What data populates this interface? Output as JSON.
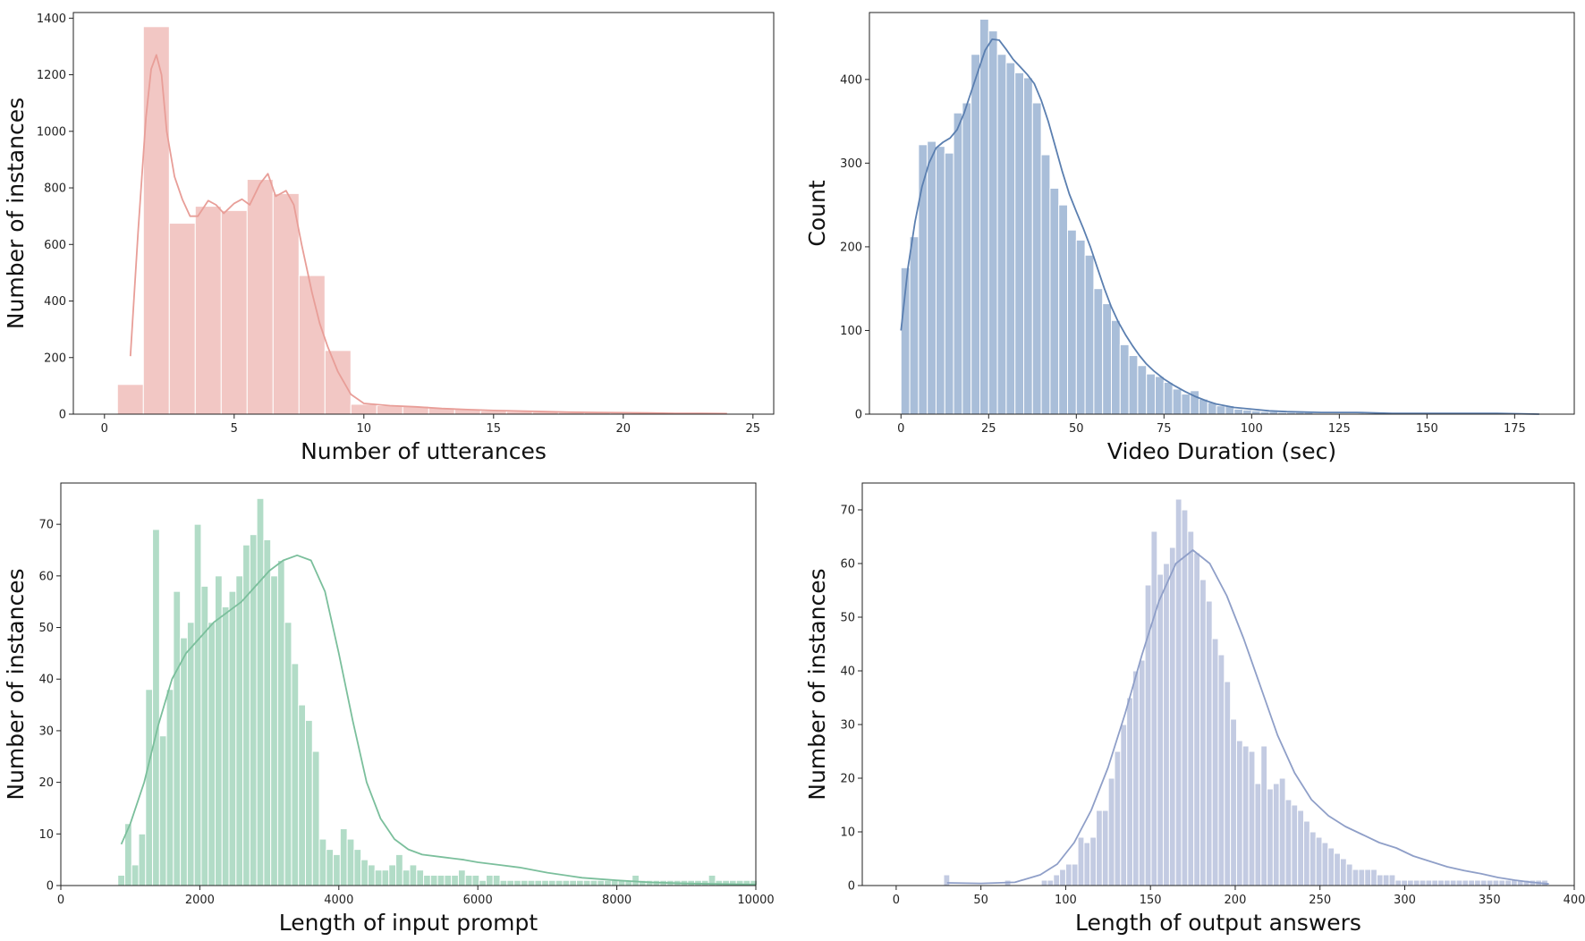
{
  "chart_data": [
    {
      "type": "bar",
      "subtype": "histogram",
      "title": "",
      "xlabel": "Number of utterances",
      "ylabel": "Number of instances",
      "xlim": [
        -1.2,
        25.8
      ],
      "ylim": [
        0,
        1420
      ],
      "xticks": [
        0,
        5,
        10,
        15,
        20,
        25
      ],
      "yticks": [
        0,
        200,
        400,
        600,
        800,
        1000,
        1200,
        1400
      ],
      "bar_color": "#f2c7c4",
      "kde_color": "#e89e98",
      "grid": false,
      "bins": {
        "start": 0.5,
        "width": 1,
        "counts": [
          105,
          1370,
          675,
          735,
          720,
          830,
          780,
          490,
          225,
          35,
          30,
          28,
          22,
          18,
          12,
          10,
          8,
          6,
          5,
          4,
          3,
          3,
          2,
          2
        ]
      },
      "kde": {
        "x": [
          1.0,
          1.3,
          1.6,
          1.8,
          2.0,
          2.2,
          2.4,
          2.7,
          3.0,
          3.3,
          3.6,
          4.0,
          4.3,
          4.6,
          5.0,
          5.3,
          5.6,
          6.0,
          6.3,
          6.6,
          7.0,
          7.3,
          7.6,
          8.0,
          8.3,
          8.6,
          9.0,
          9.5,
          10.0,
          11.0,
          12.0,
          13.0,
          14.0,
          15.0,
          16.0,
          17.0,
          18.0,
          19.0,
          20.0,
          21.0,
          22.0,
          23.0,
          24.0
        ],
        "y": [
          205,
          650,
          1050,
          1220,
          1270,
          1200,
          1000,
          840,
          760,
          700,
          700,
          755,
          740,
          710,
          745,
          760,
          740,
          815,
          850,
          770,
          790,
          740,
          600,
          430,
          320,
          240,
          150,
          70,
          38,
          30,
          26,
          20,
          16,
          13,
          11,
          9,
          7,
          6,
          5,
          4,
          3,
          3,
          2
        ]
      }
    },
    {
      "type": "bar",
      "subtype": "histogram",
      "title": "",
      "xlabel": "Video Duration (sec)",
      "ylabel": "Count",
      "xlim": [
        -9,
        192
      ],
      "ylim": [
        0,
        480
      ],
      "xticks": [
        0,
        25,
        50,
        75,
        100,
        125,
        150,
        175
      ],
      "yticks": [
        0,
        100,
        200,
        300,
        400
      ],
      "bar_color": "#a9bed9",
      "kde_color": "#5b7fb0",
      "grid": false,
      "bins": {
        "start": 0,
        "width": 2.5,
        "counts": [
          175,
          212,
          322,
          326,
          320,
          312,
          360,
          372,
          430,
          472,
          458,
          430,
          420,
          408,
          402,
          372,
          310,
          270,
          250,
          220,
          208,
          190,
          150,
          132,
          112,
          83,
          70,
          58,
          48,
          45,
          38,
          30,
          24,
          28,
          18,
          14,
          10,
          10,
          6,
          5,
          4,
          3,
          3,
          2,
          2,
          2,
          2,
          1,
          1,
          1,
          1,
          1,
          1,
          1,
          1,
          1,
          1,
          1,
          1,
          1,
          1,
          1,
          1,
          1,
          1,
          1,
          1,
          1,
          1,
          1,
          1,
          1,
          1
        ]
      },
      "kde": {
        "x": [
          0,
          2,
          4,
          6,
          8,
          10,
          12,
          14,
          16,
          18,
          20,
          22,
          24,
          26,
          28,
          30,
          32,
          34,
          36,
          38,
          40,
          42,
          44,
          46,
          48,
          50,
          52,
          54,
          56,
          58,
          60,
          62,
          64,
          66,
          68,
          70,
          72,
          75,
          78,
          81,
          84,
          87,
          90,
          95,
          100,
          105,
          110,
          120,
          130,
          140,
          150,
          160,
          170,
          182
        ],
        "y": [
          100,
          175,
          230,
          272,
          300,
          318,
          325,
          330,
          340,
          360,
          385,
          410,
          435,
          448,
          447,
          436,
          424,
          415,
          406,
          395,
          375,
          350,
          320,
          290,
          263,
          242,
          222,
          200,
          175,
          150,
          128,
          110,
          95,
          82,
          70,
          60,
          52,
          42,
          34,
          27,
          21,
          16,
          12,
          8,
          6,
          4,
          3,
          2,
          2,
          1,
          1,
          1,
          1,
          0
        ]
      }
    },
    {
      "type": "bar",
      "subtype": "histogram",
      "title": "",
      "xlabel": "Length of input prompt",
      "ylabel": "Number of instances",
      "xlim": [
        0,
        10000
      ],
      "ylim": [
        0,
        78
      ],
      "xticks": [
        0,
        2000,
        4000,
        6000,
        8000,
        10000
      ],
      "yticks": [
        0,
        10,
        20,
        30,
        40,
        50,
        60,
        70
      ],
      "bar_color": "#b2dcc7",
      "kde_color": "#7bbf9c",
      "grid": false,
      "bins": {
        "start": 820,
        "width": 100,
        "counts": [
          2,
          12,
          4,
          10,
          38,
          69,
          29,
          38,
          57,
          48,
          51,
          70,
          58,
          51,
          60,
          54,
          57,
          60,
          66,
          68,
          75,
          67,
          60,
          63,
          51,
          43,
          35,
          32,
          26,
          9,
          7,
          6,
          11,
          9,
          7,
          5,
          4,
          3,
          3,
          4,
          6,
          3,
          4,
          3,
          2,
          2,
          2,
          2,
          2,
          3,
          2,
          2,
          1,
          2,
          2,
          1,
          1,
          1,
          1,
          1,
          1,
          1,
          1,
          1,
          1,
          1,
          1,
          1,
          1,
          1,
          1,
          1,
          1,
          1,
          2,
          1,
          1,
          1,
          1,
          1,
          1,
          1,
          1,
          1,
          1,
          2,
          1,
          1,
          1,
          1,
          1,
          1
        ]
      },
      "kde": {
        "x": [
          870,
          1000,
          1200,
          1400,
          1600,
          1800,
          2000,
          2200,
          2400,
          2600,
          2800,
          3000,
          3200,
          3400,
          3600,
          3800,
          4000,
          4200,
          4400,
          4600,
          4800,
          5000,
          5200,
          5500,
          5800,
          6000,
          6300,
          6600,
          7000,
          7500,
          8000,
          8500,
          9000,
          9500,
          10000
        ],
        "y": [
          8,
          12,
          20,
          31,
          40,
          45,
          48,
          51,
          53,
          55,
          58,
          61,
          63,
          64,
          63,
          57,
          45,
          32,
          20,
          13,
          9,
          7,
          6,
          5.5,
          5,
          4.5,
          4,
          3.5,
          2.5,
          1.5,
          1,
          0.6,
          0.4,
          0.3,
          0.2
        ]
      }
    },
    {
      "type": "bar",
      "subtype": "histogram",
      "title": "",
      "xlabel": "Length of output answers",
      "ylabel": "Number of instances",
      "xlim": [
        -20,
        400
      ],
      "ylim": [
        0,
        75
      ],
      "xticks": [
        0,
        50,
        100,
        150,
        200,
        250,
        300,
        350,
        400
      ],
      "yticks": [
        0,
        10,
        20,
        30,
        40,
        50,
        60,
        70
      ],
      "bar_color": "#c3cbe2",
      "kde_color": "#8f9fc8",
      "grid": false,
      "bins": {
        "start": 28,
        "width": 3.6,
        "counts": [
          2,
          0,
          0,
          0,
          0,
          0,
          0,
          0,
          0,
          0,
          1,
          0,
          0,
          0,
          0,
          0,
          1,
          1,
          2,
          3,
          4,
          4,
          9,
          8,
          9,
          14,
          14,
          20,
          25,
          30,
          35,
          40,
          42,
          56,
          66,
          58,
          60,
          63,
          72,
          70,
          66,
          62,
          57,
          53,
          46,
          43,
          38,
          31,
          27,
          26,
          25,
          19,
          26,
          18,
          19,
          20,
          16,
          15,
          14,
          12,
          10,
          9,
          8,
          7,
          6,
          5,
          4,
          3,
          3,
          3,
          3,
          2,
          2,
          2,
          1,
          1,
          1,
          1,
          1,
          1,
          1,
          1,
          1,
          1,
          1,
          1,
          1,
          1,
          1,
          1,
          1,
          1,
          1,
          1,
          1,
          1,
          1,
          1,
          1
        ]
      },
      "kde": {
        "x": [
          30,
          50,
          70,
          85,
          95,
          105,
          115,
          125,
          135,
          145,
          155,
          165,
          175,
          185,
          195,
          205,
          215,
          225,
          235,
          245,
          255,
          265,
          275,
          285,
          295,
          305,
          315,
          325,
          335,
          345,
          355,
          365,
          375,
          385
        ],
        "y": [
          0.5,
          0.4,
          0.6,
          2,
          4,
          8,
          14,
          22,
          32,
          43,
          53,
          60,
          62.5,
          60,
          54,
          46,
          37,
          28,
          21,
          16,
          13,
          11,
          9.5,
          8,
          7,
          5.5,
          4.5,
          3.5,
          2.8,
          2.2,
          1.5,
          1,
          0.6,
          0.3
        ]
      }
    }
  ]
}
